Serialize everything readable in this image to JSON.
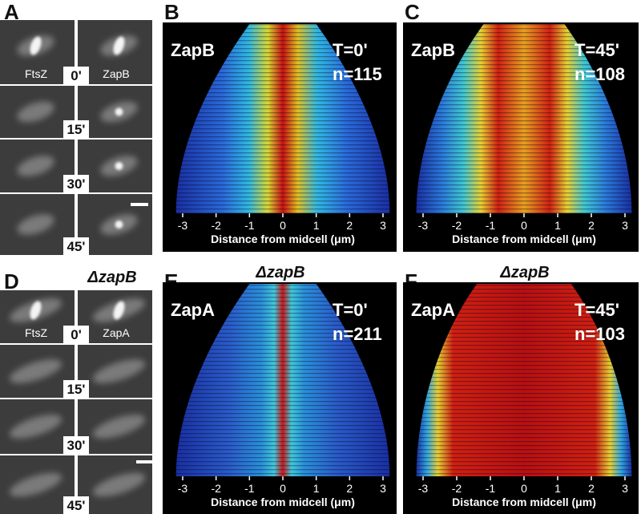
{
  "panels": [
    {
      "label": "A",
      "channels": [
        "FtsZ",
        "ZapB"
      ],
      "time_labels": [
        "0'",
        "15'",
        "30'",
        "45'"
      ]
    },
    {
      "label": "B",
      "protein": "ZapB",
      "time": "T=0'",
      "n": "n=115",
      "xticks": [
        -3,
        -2,
        -1,
        0,
        1,
        2,
        3
      ],
      "xlabel": "Distance from midcell (μm)"
    },
    {
      "label": "C",
      "protein": "ZapB",
      "time": "T=45'",
      "n": "n=108",
      "xticks": [
        -3,
        -2,
        -1,
        0,
        1,
        2,
        3
      ],
      "xlabel": "Distance from midcell (μm)"
    },
    {
      "label": "D",
      "title": "ΔzapB",
      "channels": [
        "FtsZ",
        "ZapA"
      ],
      "time_labels": [
        "0'",
        "15'",
        "30'",
        "45'"
      ]
    },
    {
      "label": "E",
      "title": "ΔzapB",
      "protein": "ZapA",
      "time": "T=0'",
      "n": "n=211",
      "xticks": [
        -3,
        -2,
        -1,
        0,
        1,
        2,
        3
      ],
      "xlabel": "Distance from midcell (μm)"
    },
    {
      "label": "F",
      "title": "ΔzapB",
      "protein": "ZapA",
      "time": "T=45'",
      "n": "n=103",
      "xticks": [
        -3,
        -2,
        -1,
        0,
        1,
        2,
        3
      ],
      "xlabel": "Distance from midcell (μm)"
    }
  ]
}
